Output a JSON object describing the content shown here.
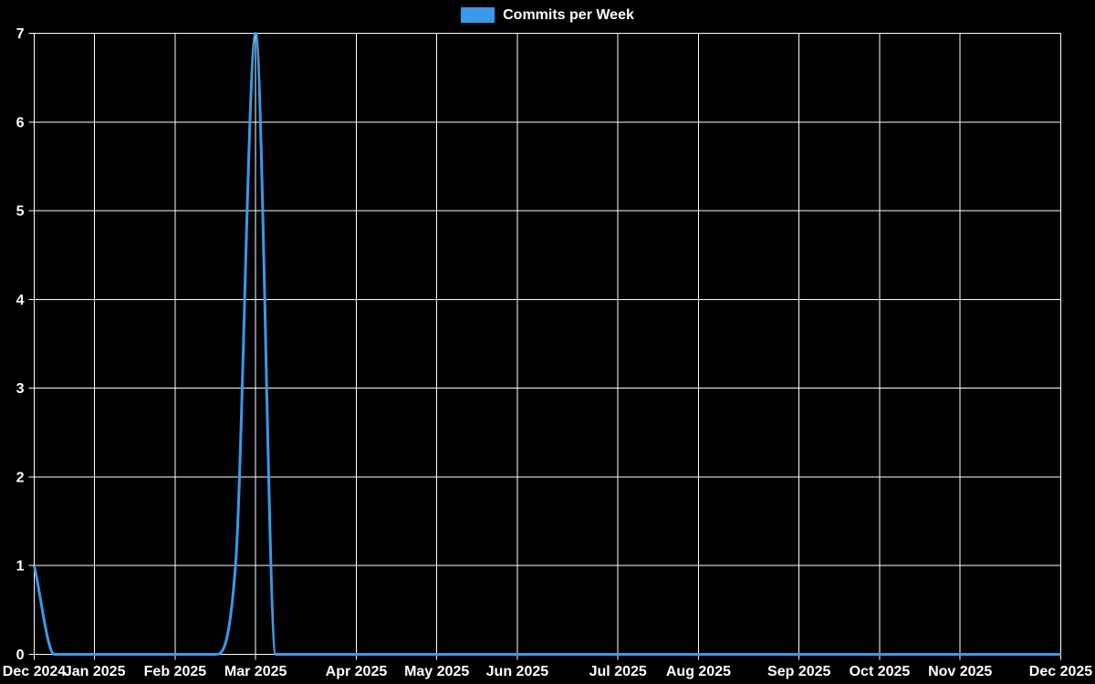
{
  "legend": {
    "label": "Commits per Week"
  },
  "colors": {
    "background": "#000000",
    "grid": "#ffffff",
    "axis": "#ffffff",
    "text": "#ffffff",
    "line": "#3a99e8"
  },
  "chart_data": {
    "type": "line",
    "title": "",
    "xlabel": "",
    "ylabel": "",
    "legend_position": "top",
    "grid": true,
    "point_markers": false,
    "smoothing": "monotone",
    "n_points": 52,
    "x_unit": "week-index",
    "xlim": [
      0,
      51
    ],
    "ylim": [
      0,
      7
    ],
    "y_ticks": [
      0,
      1,
      2,
      3,
      4,
      5,
      6,
      7
    ],
    "x_tick_indices": [
      0,
      3,
      7,
      11,
      16,
      20,
      24,
      29,
      33,
      38,
      42,
      46,
      51
    ],
    "x_tick_labels": [
      "Dec 2024",
      "Jan 2025",
      "Feb 2025",
      "Mar 2025",
      "Apr 2025",
      "May 2025",
      "Jun 2025",
      "Jul 2025",
      "Aug 2025",
      "Sep 2025",
      "Oct 2025",
      "Nov 2025",
      "Dec 2025"
    ],
    "series": [
      {
        "name": "Commits per Week",
        "values": [
          1,
          0,
          0,
          0,
          0,
          0,
          0,
          0,
          0,
          0,
          1,
          7,
          0,
          0,
          0,
          0,
          0,
          0,
          0,
          0,
          0,
          0,
          0,
          0,
          0,
          0,
          0,
          0,
          0,
          0,
          0,
          0,
          0,
          0,
          0,
          0,
          0,
          0,
          0,
          0,
          0,
          0,
          0,
          0,
          0,
          0,
          0,
          0,
          0,
          0,
          0,
          0
        ]
      }
    ]
  }
}
